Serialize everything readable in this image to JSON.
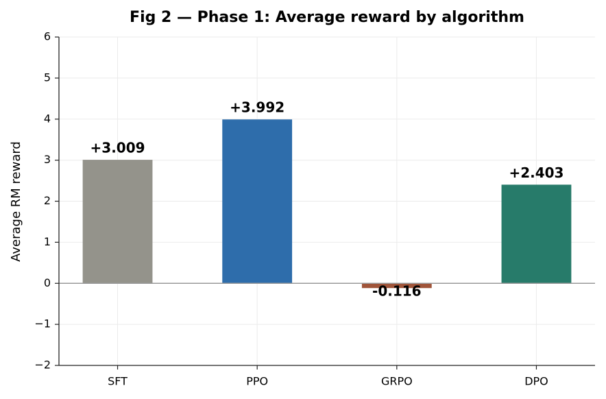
{
  "chart_data": {
    "type": "bar",
    "title": "Fig 2 — Phase 1: Average reward by algorithm",
    "y_label": "Average RM reward",
    "categories": [
      "SFT",
      "PPO",
      "GRPO",
      "DPO"
    ],
    "values": [
      3.009,
      3.992,
      -0.116,
      2.403
    ],
    "value_labels": [
      "+3.009",
      "+3.992",
      "-0.116",
      "+2.403"
    ],
    "colors": [
      "#94938b",
      "#2e6dab",
      "#a0553a",
      "#277b6a"
    ],
    "ylim": [
      -2,
      6
    ],
    "yticks": [
      {
        "value": -2,
        "label": "−2"
      },
      {
        "value": -1,
        "label": "−1"
      },
      0,
      1,
      2,
      3,
      4,
      5,
      6
    ],
    "grid": true
  }
}
